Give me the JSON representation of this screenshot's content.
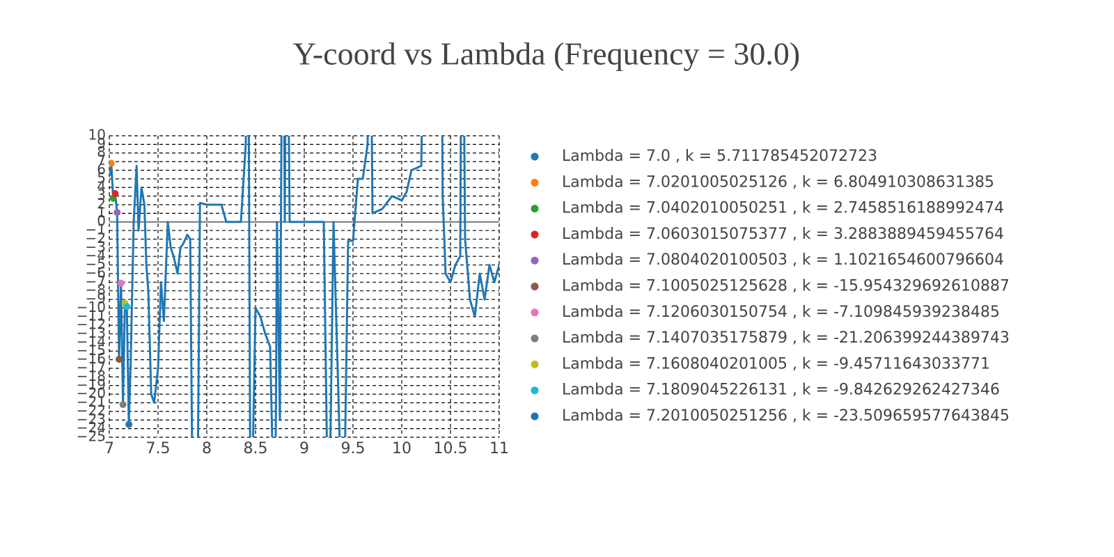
{
  "chart_data": {
    "type": "line",
    "title": "Y-coord vs Lambda (Frequency = 30.0)",
    "xlim": [
      7,
      11
    ],
    "xticks": [
      7,
      7.5,
      8,
      8.5,
      9,
      9.5,
      10,
      10.5,
      11
    ],
    "ylim": [
      -25,
      10
    ],
    "yticks": [
      10,
      9,
      8,
      7,
      6,
      5,
      4,
      3,
      2,
      1,
      0,
      {
        "value": -1,
        "label": "−1"
      },
      {
        "value": -2,
        "label": "−2"
      },
      {
        "value": -3,
        "label": "−3"
      },
      {
        "value": -4,
        "label": "−4"
      },
      {
        "value": -5,
        "label": "−5"
      },
      {
        "value": -6,
        "label": "−6"
      },
      {
        "value": -7,
        "label": "−7"
      },
      {
        "value": -8,
        "label": "−8"
      },
      {
        "value": -9,
        "label": "−9"
      },
      {
        "value": -10,
        "label": "−10"
      },
      {
        "value": -11,
        "label": "−11"
      },
      {
        "value": -12,
        "label": "−12"
      },
      {
        "value": -13,
        "label": "−13"
      },
      {
        "value": -14,
        "label": "−14"
      },
      {
        "value": -15,
        "label": "−15"
      },
      {
        "value": -16,
        "label": "−16"
      },
      {
        "value": -17,
        "label": "−17"
      },
      {
        "value": -18,
        "label": "−18"
      },
      {
        "value": -19,
        "label": "−19"
      },
      {
        "value": -20,
        "label": "−20"
      },
      {
        "value": -21,
        "label": "−21"
      },
      {
        "value": -22,
        "label": "−22"
      },
      {
        "value": -23,
        "label": "−23"
      },
      {
        "value": -24,
        "label": "−24"
      },
      {
        "value": -25,
        "label": "−25"
      }
    ],
    "grid": true,
    "zeroline": true,
    "legend": "right",
    "series": [
      {
        "color": "#1f77b4",
        "x": [
          7.0,
          7.02,
          7.04,
          7.06,
          7.08,
          7.1,
          7.12,
          7.14,
          7.16,
          7.18,
          7.2,
          7.22,
          7.25,
          7.28,
          7.3,
          7.33,
          7.36,
          7.38,
          7.4,
          7.43,
          7.46,
          7.5,
          7.53,
          7.56,
          7.6,
          7.63,
          7.66,
          7.7,
          7.73,
          7.76,
          7.8,
          7.83,
          7.86,
          7.9,
          7.93,
          8.0,
          8.1,
          8.15,
          8.2,
          8.35,
          8.4,
          8.42,
          8.45,
          8.5,
          8.55,
          8.6,
          8.65,
          8.7,
          8.72,
          8.75,
          8.78,
          8.8,
          8.82,
          8.85,
          9.0,
          9.2,
          9.25,
          9.3,
          9.4,
          9.45,
          9.5,
          9.55,
          9.6,
          9.65,
          9.67,
          9.7,
          9.8,
          9.9,
          10.0,
          10.05,
          10.1,
          10.2,
          10.25,
          10.4,
          10.42,
          10.45,
          10.5,
          10.55,
          10.6,
          10.62,
          10.65,
          10.7,
          10.75,
          10.8,
          10.85,
          10.9,
          10.95,
          11.0
        ],
        "values": [
          5.7,
          6.8,
          2.7,
          3.3,
          1.1,
          -16,
          -7.1,
          -21.2,
          -9.5,
          -9.8,
          -23.5,
          -16,
          0,
          6.5,
          -1,
          4,
          2,
          -5,
          -8,
          -20,
          -21,
          -17,
          -7,
          -11.5,
          0,
          -3,
          -4,
          -6,
          -3,
          -2.5,
          -1.5,
          -2,
          -40,
          -40,
          2.2,
          2,
          2,
          2,
          0,
          0,
          9,
          40,
          -40,
          -10,
          -11,
          -13,
          -14.5,
          -40,
          0,
          -23,
          40,
          0,
          40,
          0,
          0,
          0,
          -40,
          0,
          -40,
          -2.2,
          -2.2,
          5,
          5,
          9,
          40,
          1,
          1.5,
          3,
          2.5,
          3.5,
          6,
          6.5,
          40,
          40,
          3,
          -6,
          -7,
          -5,
          -4,
          40,
          -2,
          -9,
          -11,
          -6,
          -9,
          -5,
          -7,
          -5
        ]
      },
      {
        "name": "Lambda = 7.0 , k = 5.711785452072723",
        "color": "#1f77b4",
        "x": [
          7.0
        ],
        "values": [
          5.711785452072723
        ]
      },
      {
        "name": "Lambda = 7.0201005025126 , k = 6.804910308631385",
        "color": "#ff7f0e",
        "x": [
          7.0201005025126
        ],
        "values": [
          6.804910308631385
        ]
      },
      {
        "name": "Lambda = 7.0402010050251 , k = 2.7458516188992474",
        "color": "#2ca02c",
        "x": [
          7.0402010050251
        ],
        "values": [
          2.7458516188992474
        ]
      },
      {
        "name": "Lambda = 7.0603015075377 , k = 3.2883889459455764",
        "color": "#d62728",
        "x": [
          7.0603015075377
        ],
        "values": [
          3.2883889459455764
        ]
      },
      {
        "name": "Lambda = 7.0804020100503 , k = 1.1021654600796604",
        "color": "#9467bd",
        "x": [
          7.0804020100503
        ],
        "values": [
          1.1021654600796604
        ]
      },
      {
        "name": "Lambda = 7.1005025125628 , k = -15.954329692610887",
        "color": "#8c564b",
        "x": [
          7.1005025125628
        ],
        "values": [
          -15.954329692610887
        ]
      },
      {
        "name": "Lambda = 7.1206030150754 , k = -7.109845939238485",
        "color": "#e377c2",
        "x": [
          7.1206030150754
        ],
        "values": [
          -7.109845939238485
        ]
      },
      {
        "name": "Lambda = 7.1407035175879 , k = -21.206399244389743",
        "color": "#7f7f7f",
        "x": [
          7.1407035175879
        ],
        "values": [
          -21.206399244389743
        ]
      },
      {
        "name": "Lambda = 7.1608040201005 , k = -9.45711643033771",
        "color": "#bcbd22",
        "x": [
          7.1608040201005
        ],
        "values": [
          -9.45711643033771
        ]
      },
      {
        "name": "Lambda = 7.1809045226131 , k = -9.842629262427346",
        "color": "#17becf",
        "x": [
          7.1809045226131
        ],
        "values": [
          -9.842629262427346
        ]
      },
      {
        "name": "Lambda = 7.2010050251256 , k = -23.509659577643845",
        "color": "#1f77b4",
        "x": [
          7.2010050251256
        ],
        "values": [
          -23.509659577643845
        ]
      }
    ]
  }
}
